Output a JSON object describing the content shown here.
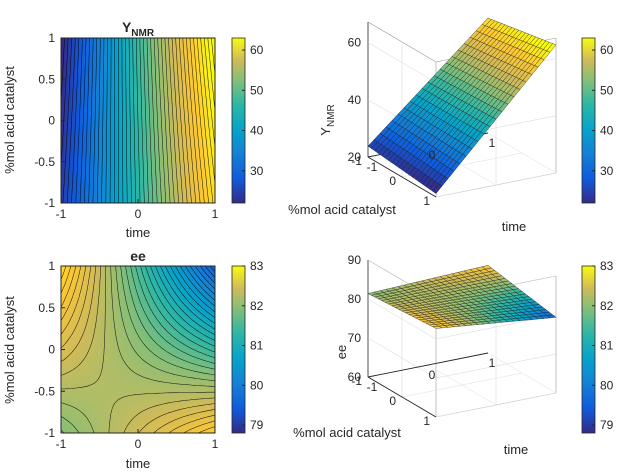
{
  "chart_data": [
    {
      "type": "contour",
      "title": "Y",
      "title_sub": "NMR",
      "xlabel": "time",
      "ylabel": "%mol acid catalyst",
      "xlim": [
        -1,
        1
      ],
      "ylim": [
        -1,
        1
      ],
      "xticks": [
        "-1",
        "0",
        "1"
      ],
      "yticks": [
        "1",
        "0.5",
        "0",
        "-0.5",
        "-1"
      ],
      "colorbar": {
        "ticks": [
          "60",
          "50",
          "40",
          "30"
        ],
        "range": [
          22,
          63
        ]
      },
      "model": {
        "b0": 42.5,
        "bx": 20.0,
        "by": 0.5,
        "bxy": 1.8
      },
      "colormap": "parula"
    },
    {
      "type": "surface",
      "zlabel": "Y",
      "zlabel_sub": "NMR",
      "xlabel": "time",
      "ylabel": "%mol acid catalyst",
      "zlim": [
        20,
        60
      ],
      "zticks": [
        "60",
        "40",
        "20"
      ],
      "xticks": [
        "-1",
        "0",
        "1"
      ],
      "yticks": [
        "1",
        "0",
        "-1"
      ],
      "colorbar": {
        "ticks": [
          "60",
          "50",
          "40",
          "30"
        ],
        "range": [
          22,
          63
        ]
      },
      "colormap": "parula"
    },
    {
      "type": "contour",
      "title": "ee",
      "xlabel": "time",
      "ylabel": "%mol acid catalyst",
      "xlim": [
        -1,
        1
      ],
      "ylim": [
        -1,
        1
      ],
      "xticks": [
        "-1",
        "0",
        "1"
      ],
      "yticks": [
        "1",
        "0.5",
        "0",
        "-0.5",
        "-1"
      ],
      "colorbar": {
        "ticks": [
          "83",
          "82",
          "81",
          "80",
          "79"
        ],
        "range": [
          78.8,
          83.0
        ]
      },
      "model": {
        "b0": 81.5,
        "bx": -0.55,
        "by": -0.45,
        "bxy": -1.1
      },
      "colormap": "parula"
    },
    {
      "type": "surface",
      "zlabel": "ee",
      "xlabel": "time",
      "ylabel": "%mol acid catalyst",
      "zlim": [
        60,
        90
      ],
      "zticks": [
        "90",
        "80",
        "70",
        "60"
      ],
      "xticks": [
        "-1",
        "0",
        "1"
      ],
      "yticks": [
        "1",
        "0",
        "-1"
      ],
      "colorbar": {
        "ticks": [
          "83",
          "82",
          "81",
          "80",
          "79"
        ],
        "range": [
          78.8,
          83.0
        ]
      },
      "colormap": "parula"
    }
  ]
}
